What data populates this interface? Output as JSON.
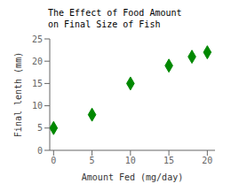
{
  "chart_data": {
    "type": "scatter",
    "title": "The Effect of Food Amount\non Final Size of Fish",
    "x_label": "Amount Fed (mg/day)",
    "y_label": "Final lenth (mm)",
    "x": [
      0,
      5,
      10,
      15,
      18,
      20
    ],
    "values": [
      5,
      8,
      15,
      19,
      21,
      22
    ],
    "xlim": [
      -0.5,
      21
    ],
    "ylim": [
      0,
      25
    ],
    "xticks": [
      0,
      5,
      10,
      15,
      20
    ],
    "yticks": [
      0,
      5,
      10,
      15,
      20,
      25
    ],
    "color": "#008800",
    "marker": "diamond",
    "grid": false
  }
}
